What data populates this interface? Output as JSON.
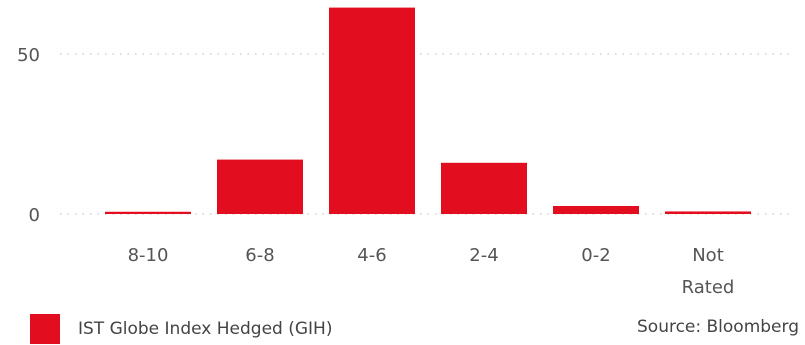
{
  "chart_data": {
    "type": "bar",
    "title": "",
    "xlabel": "",
    "ylabel": "",
    "categories": [
      "8-10",
      "6-8",
      "4-6",
      "2-4",
      "0-2",
      "Not Rated"
    ],
    "category_lines": [
      [
        "8-10"
      ],
      [
        "6-8"
      ],
      [
        "4-6"
      ],
      [
        "2-4"
      ],
      [
        "0-2"
      ],
      [
        "Not",
        "Rated"
      ]
    ],
    "series": [
      {
        "name": "IST Globe Index Hedged (GIH)",
        "values": [
          0.7,
          17.0,
          64.5,
          16.0,
          2.5,
          0.8
        ]
      }
    ],
    "ylim": [
      0,
      65.5
    ],
    "yticks": [
      0,
      50
    ],
    "ytick_labels": [
      "0",
      "50"
    ],
    "grid": true,
    "grid_style": "dotted",
    "legend_position": "bottom-left",
    "bar_color": "#e20d1e"
  },
  "footer": {
    "legend_label": "IST Globe Index Hedged (GIH)",
    "source": "Source: Bloomberg"
  }
}
